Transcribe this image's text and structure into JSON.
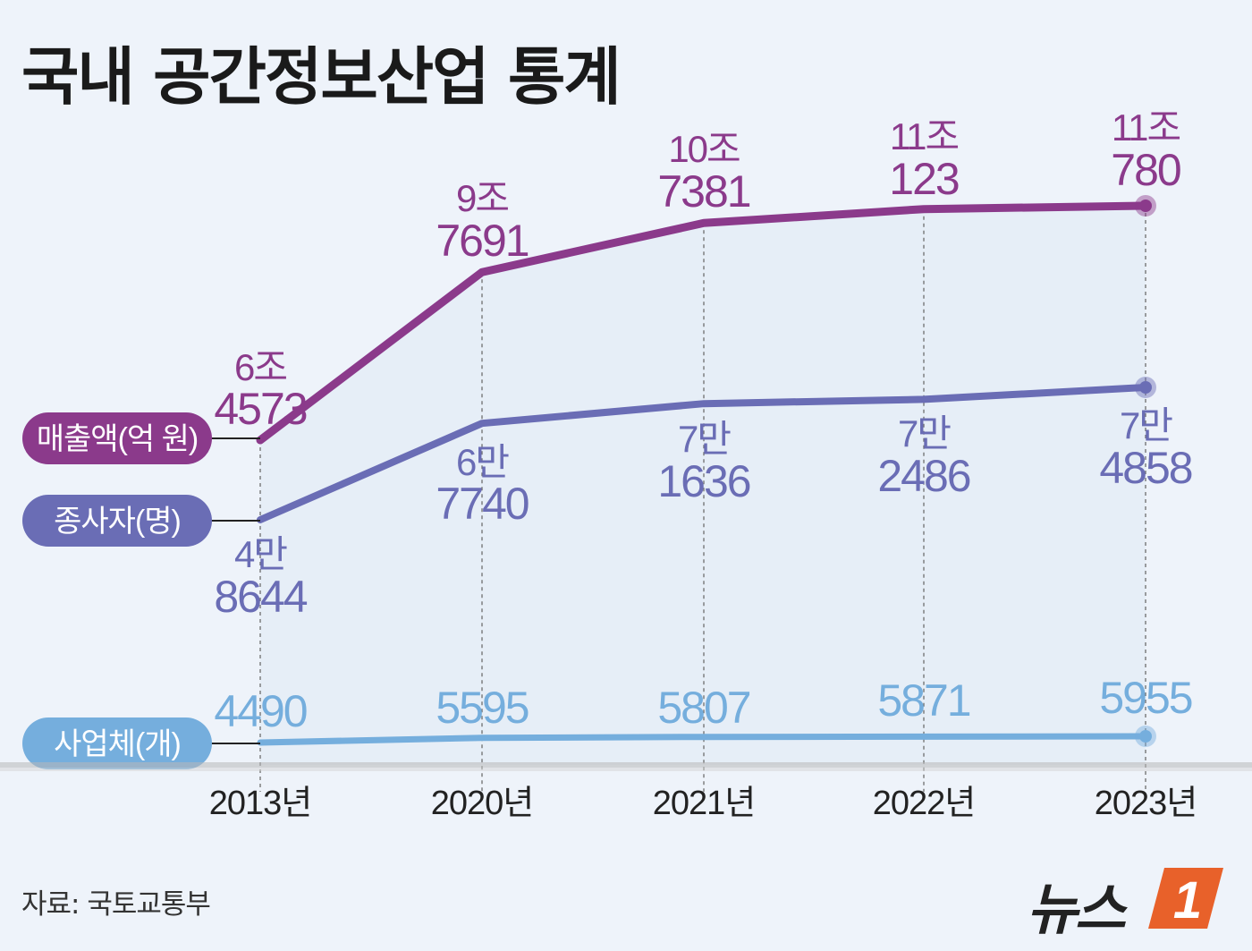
{
  "title": "국내 공간정보산업 통계",
  "source": "자료: 국토교통부",
  "logo": {
    "text": "뉴스",
    "badge": "1"
  },
  "colors": {
    "background": "#eef3fa",
    "revenue": "#8b3a8b",
    "employees": "#6a6db5",
    "companies": "#75aedd",
    "area": "#e4ecf6",
    "axis": "#8a8a8a",
    "logo_badge": "#e8612a"
  },
  "chart_data": {
    "type": "line",
    "title": "국내 공간정보산업 통계",
    "categories": [
      "2013년",
      "2020년",
      "2021년",
      "2022년",
      "2023년"
    ],
    "series": [
      {
        "name": "매출액(억 원)",
        "values": [
          64573,
          97691,
          107381,
          110123,
          110780
        ],
        "labels": [
          [
            "6조",
            "4573"
          ],
          [
            "9조",
            "7691"
          ],
          [
            "10조",
            "7381"
          ],
          [
            "11조",
            "123"
          ],
          [
            "11조",
            "780"
          ]
        ]
      },
      {
        "name": "종사자(명)",
        "values": [
          48644,
          67740,
          71636,
          72486,
          74858
        ],
        "labels": [
          [
            "4만",
            "8644"
          ],
          [
            "6만",
            "7740"
          ],
          [
            "7만",
            "1636"
          ],
          [
            "7만",
            "2486"
          ],
          [
            "7만",
            "4858"
          ]
        ]
      },
      {
        "name": "사업체(개)",
        "values": [
          4490,
          5595,
          5807,
          5871,
          5955
        ],
        "labels": [
          [
            "4490"
          ],
          [
            "5595"
          ],
          [
            "5807"
          ],
          [
            "5871"
          ],
          [
            "5955"
          ]
        ]
      }
    ],
    "xlabel": "",
    "ylabel": ""
  }
}
